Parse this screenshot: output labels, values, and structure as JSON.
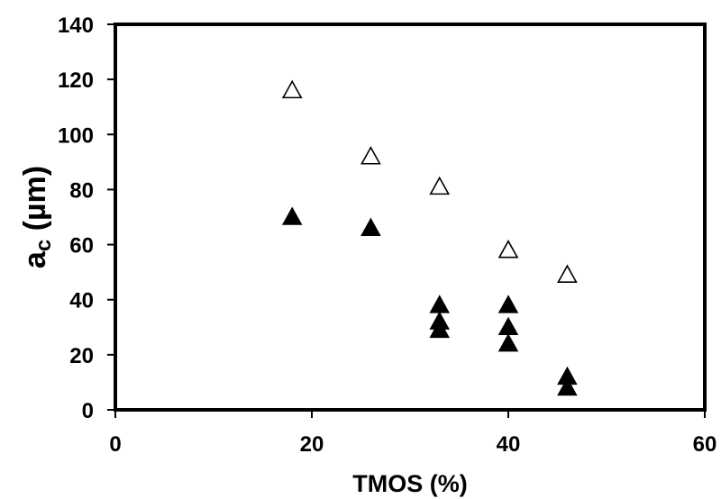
{
  "chart_data": {
    "type": "scatter",
    "title": "",
    "xlabel": "TMOS (%)",
    "ylabel_main": "a",
    "ylabel_sub": "c",
    "ylabel_unit": " (µm)",
    "xlim": [
      0,
      60
    ],
    "ylim": [
      0,
      140
    ],
    "xticks": [
      0,
      20,
      40,
      60
    ],
    "yticks": [
      0,
      20,
      40,
      60,
      80,
      100,
      120,
      140
    ],
    "grid": false,
    "series": [
      {
        "marker": "open-triangle",
        "points": [
          {
            "x": 18,
            "y": 116
          },
          {
            "x": 26,
            "y": 92
          },
          {
            "x": 33,
            "y": 81
          },
          {
            "x": 40,
            "y": 58
          },
          {
            "x": 46,
            "y": 49
          }
        ]
      },
      {
        "marker": "filled-triangle",
        "points": [
          {
            "x": 18,
            "y": 70
          },
          {
            "x": 26,
            "y": 66
          },
          {
            "x": 33,
            "y": 38
          },
          {
            "x": 33,
            "y": 32
          },
          {
            "x": 33,
            "y": 29
          },
          {
            "x": 40,
            "y": 38
          },
          {
            "x": 40,
            "y": 30
          },
          {
            "x": 40,
            "y": 24
          },
          {
            "x": 46,
            "y": 12
          },
          {
            "x": 46,
            "y": 8
          }
        ]
      }
    ]
  }
}
